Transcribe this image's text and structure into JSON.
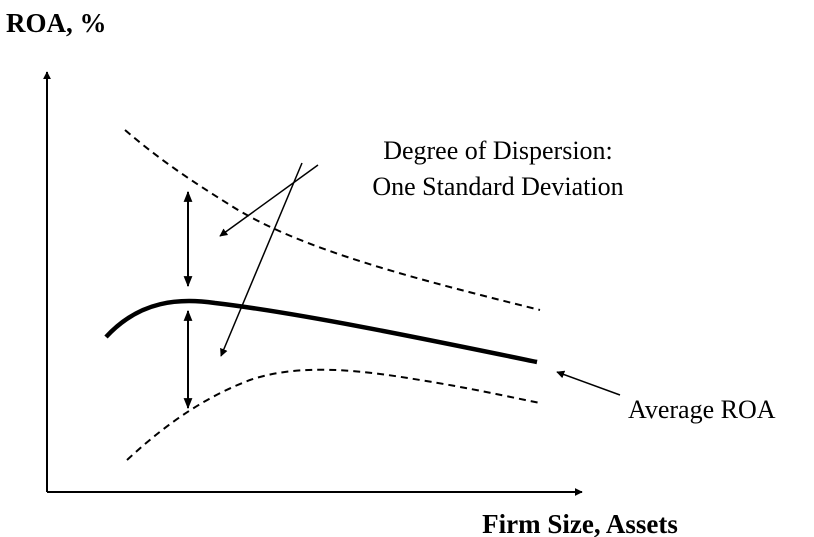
{
  "diagram": {
    "y_axis_label": "ROA, %",
    "x_axis_label": "Firm Size, Assets",
    "dispersion_label_line1": "Degree of Dispersion:",
    "dispersion_label_line2": "One Standard Deviation",
    "average_label": "Average ROA",
    "line_color": "#000000"
  }
}
